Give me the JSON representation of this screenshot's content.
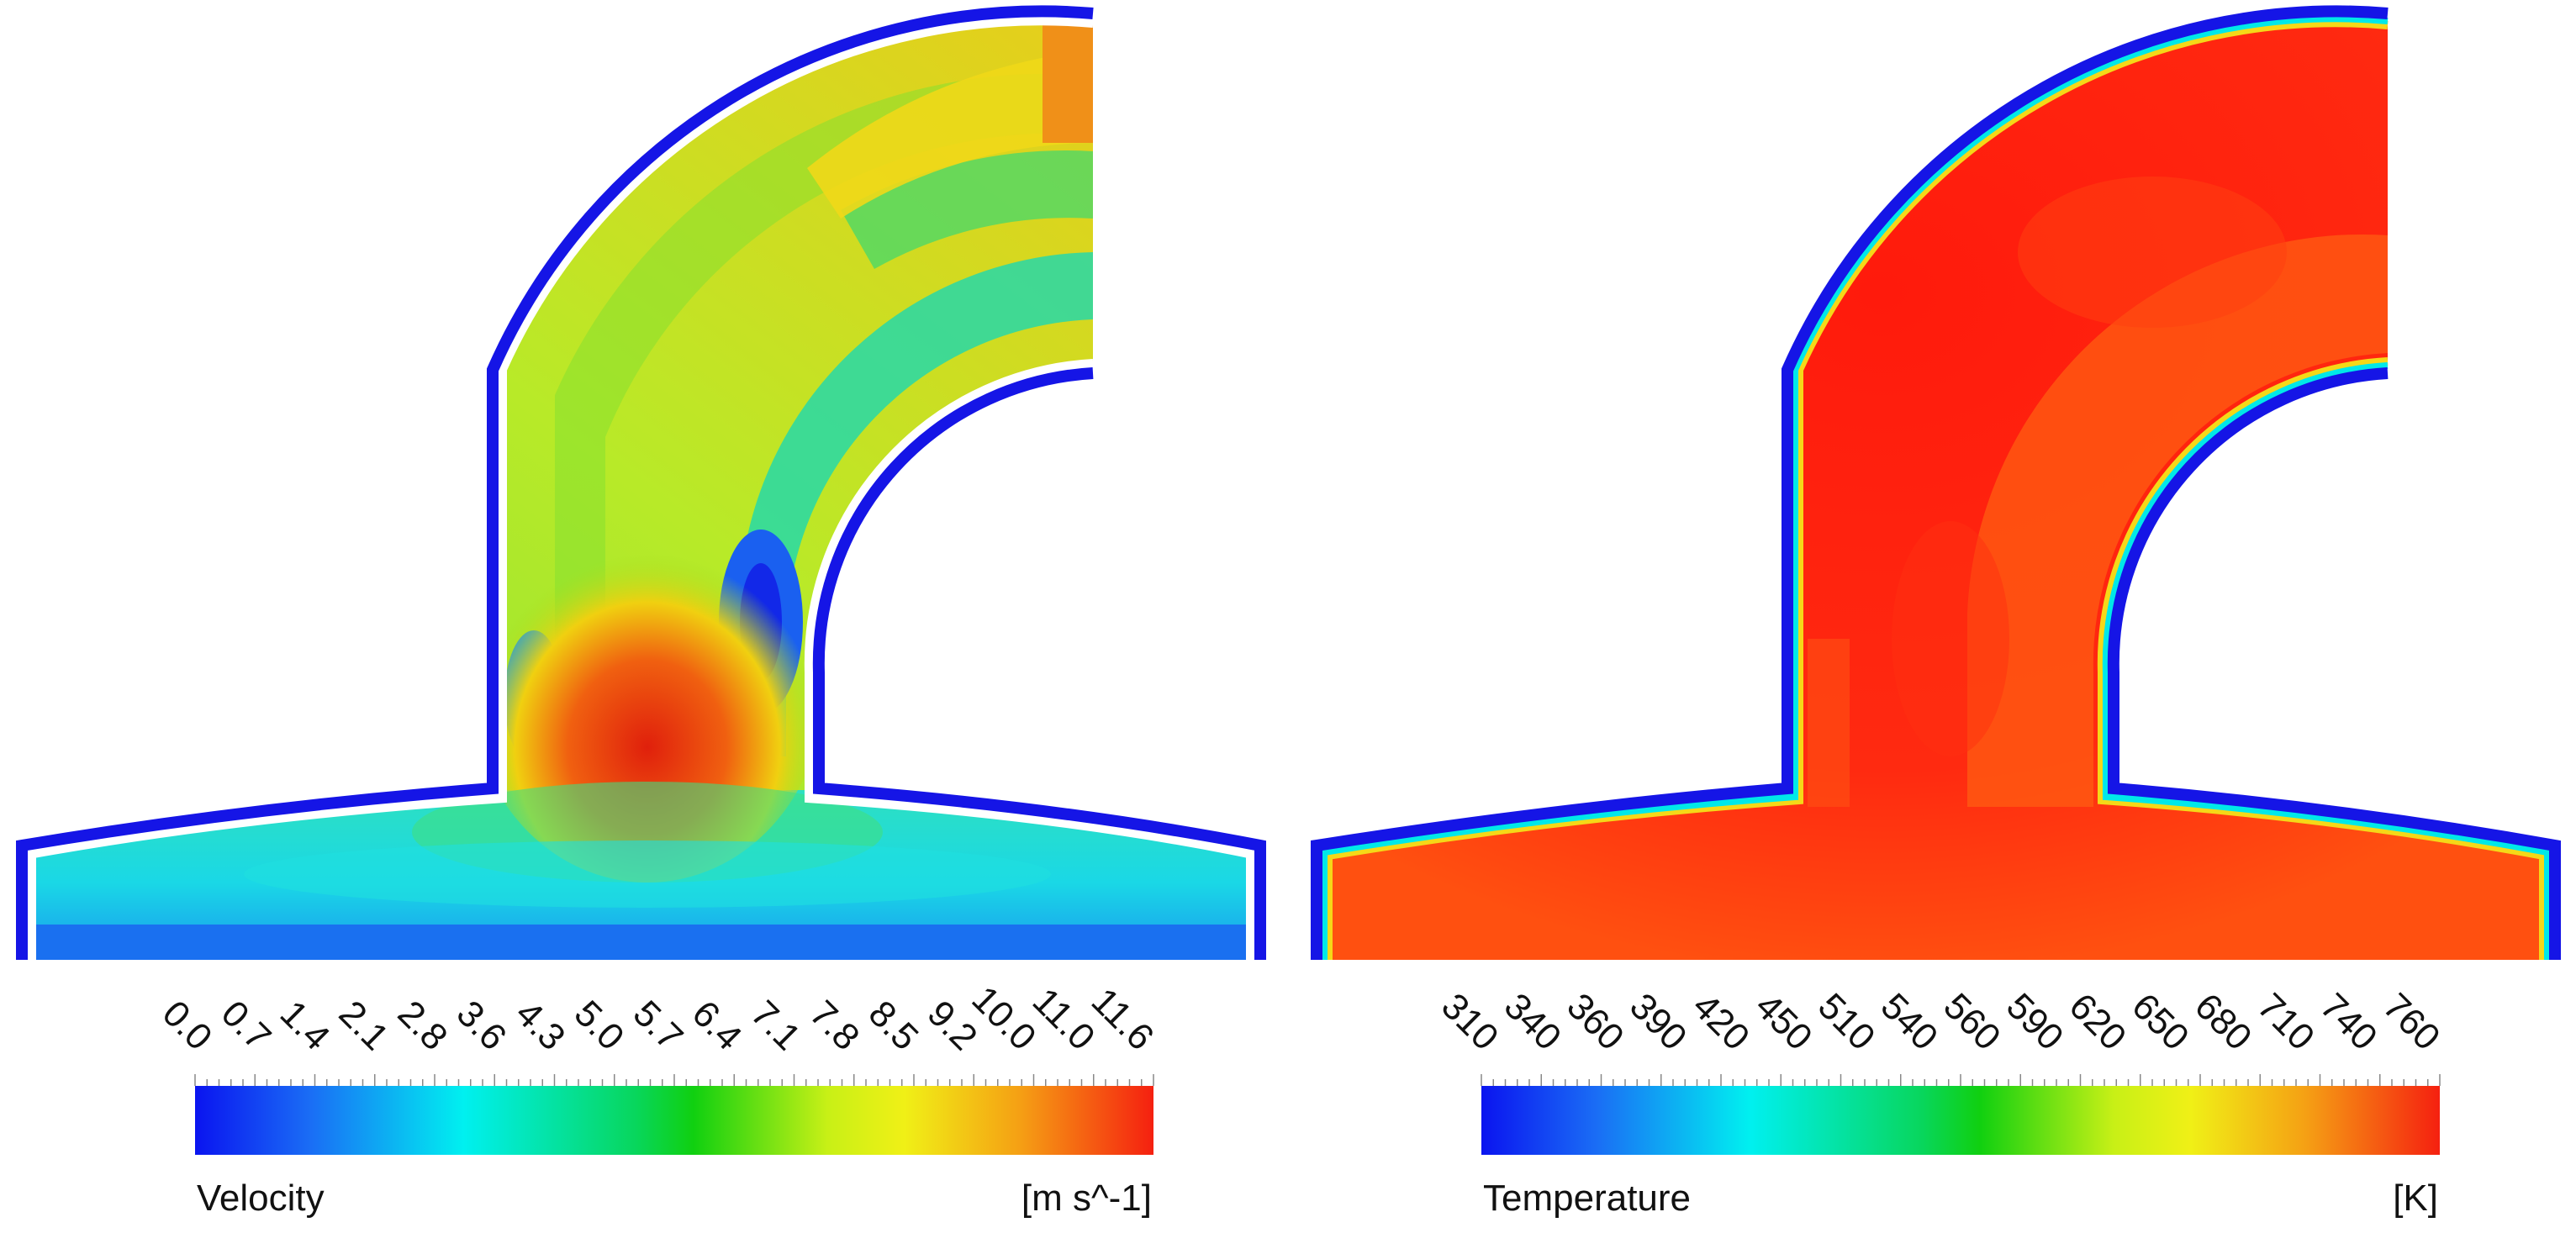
{
  "panels": [
    {
      "id": "velocity",
      "quantity_label": "Velocity",
      "unit_label": "[m s^-1]",
      "ticks": [
        "0.0",
        "0.7",
        "1.4",
        "2.1",
        "2.8",
        "3.6",
        "4.3",
        "5.0",
        "5.7",
        "6.4",
        "7.1",
        "7.8",
        "8.5",
        "9.2",
        "10.0",
        "11.0",
        "11.6"
      ],
      "wall_color": "#1515e6"
    },
    {
      "id": "temperature",
      "quantity_label": "Temperature",
      "unit_label": "[K]",
      "ticks": [
        "310",
        "340",
        "360",
        "390",
        "420",
        "450",
        "510",
        "540",
        "560",
        "590",
        "620",
        "650",
        "680",
        "710",
        "740",
        "760"
      ],
      "wall_color": "#1515e6"
    }
  ],
  "colormap": {
    "name": "rainbow",
    "stops": [
      "#0a14f0",
      "#1a6df5",
      "#00f0f0",
      "#08d65c",
      "#10d010",
      "#c8f016",
      "#f0f016",
      "#f5a014",
      "#f52010"
    ]
  },
  "colors": {
    "field_low": "#20b8f0",
    "field_mid": "#40e0a0",
    "field_high": "#e03010",
    "temp_body": "#ff2a10",
    "temp_shade": "#ff5a10"
  }
}
